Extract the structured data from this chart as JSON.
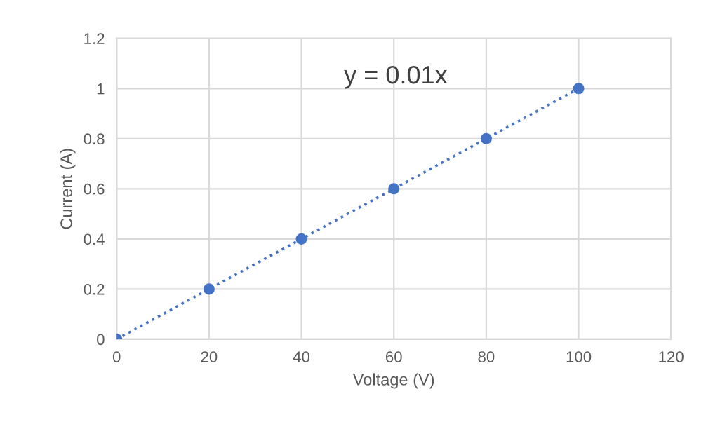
{
  "chart_data": {
    "type": "scatter",
    "xlabel": "Voltage (V)",
    "ylabel": "Current (A)",
    "series": [
      {
        "color": "#4472c4",
        "x": [
          0,
          20,
          40,
          60,
          80,
          100
        ],
        "values": [
          0,
          0.2,
          0.4,
          0.6,
          0.8,
          1
        ]
      },
      {
        "type": "line",
        "color": "#4472c4",
        "x": [
          0,
          100
        ],
        "values": [
          0,
          1
        ],
        "line_style": "dotted",
        "marker": "none"
      }
    ],
    "marker": "circle",
    "annotations": [
      "y = 0.01x"
    ],
    "xlim": [
      0,
      120
    ],
    "xticks": [
      0,
      20,
      40,
      60,
      80,
      100,
      120
    ],
    "ylim": [
      0,
      1.2
    ],
    "yticks": [
      0,
      0.2,
      0.4,
      0.6,
      0.8,
      1,
      1.2
    ],
    "grid": true
  }
}
